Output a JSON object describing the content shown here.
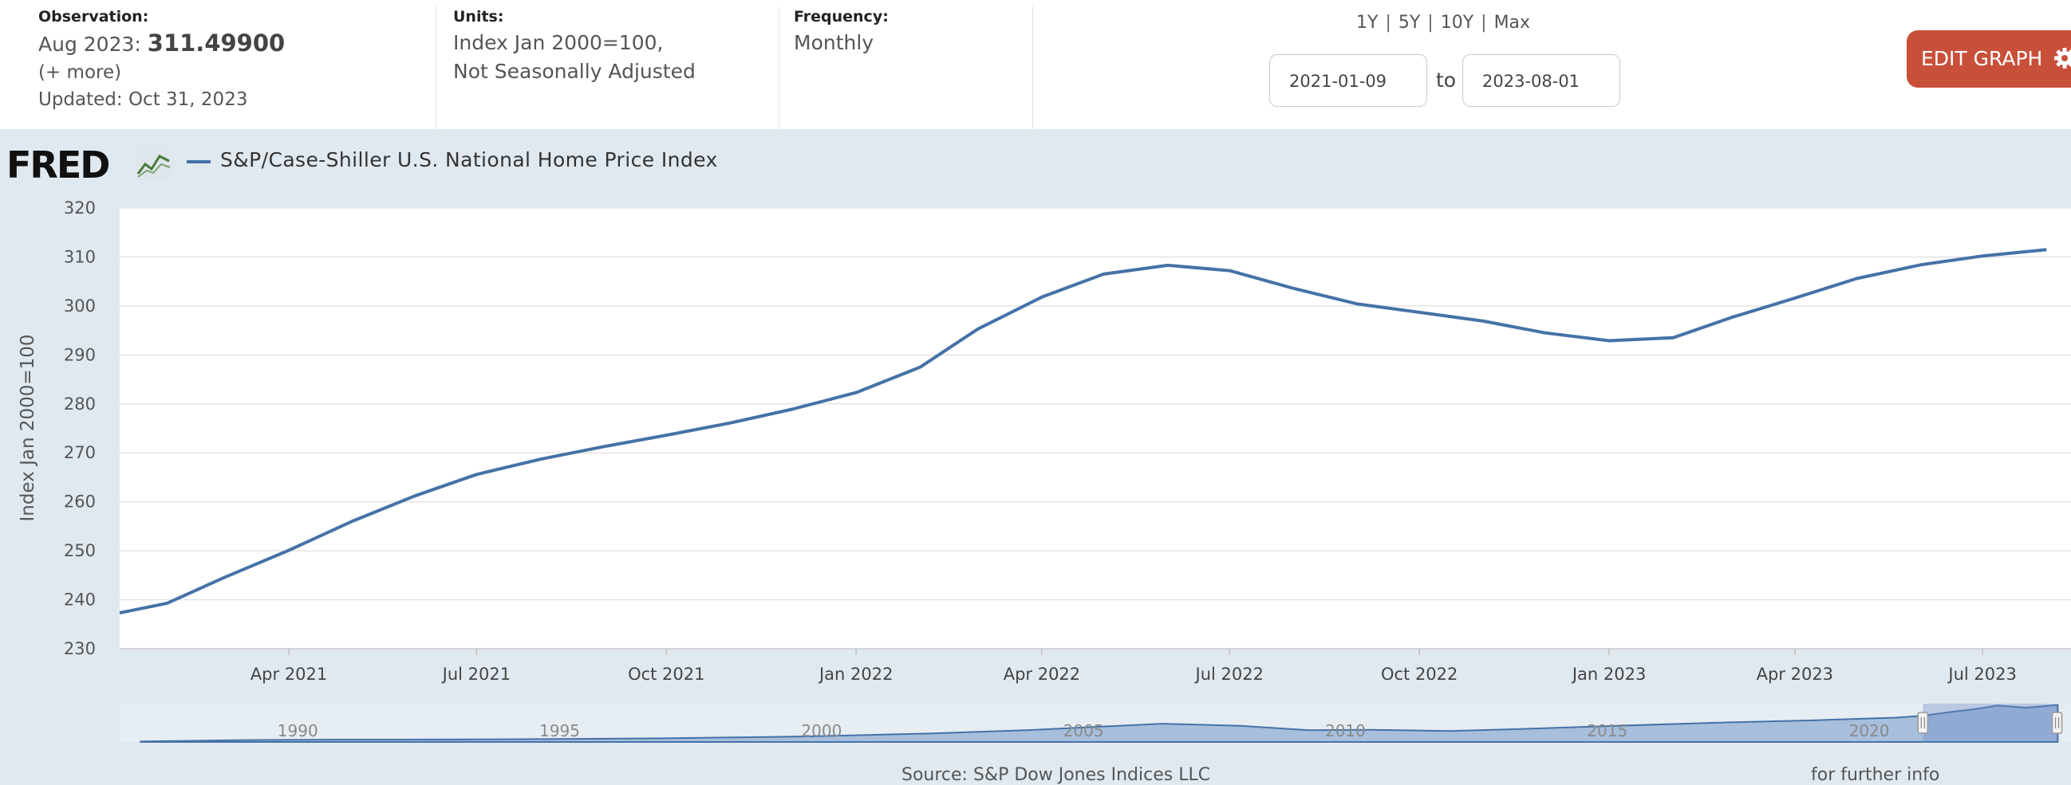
{
  "header": {
    "observation": {
      "label": "Observation:",
      "date": "Aug 2023:",
      "value": "311.49900",
      "more": "(+ more)",
      "updated": "Updated: Oct 31, 2023"
    },
    "units": {
      "label": "Units:",
      "line1": "Index Jan 2000=100,",
      "line2": "Not Seasonally Adjusted"
    },
    "frequency": {
      "label": "Frequency:",
      "value": "Monthly"
    },
    "range_links": [
      "1Y",
      "5Y",
      "10Y",
      "Max"
    ],
    "date_from": "2021-01-09",
    "to_label": "to",
    "date_to": "2023-08-01",
    "edit_button": "EDIT GRAPH",
    "edit_icon": "gear-icon"
  },
  "legend": {
    "logo": "FRED",
    "series_label": "S&P/Case-Shiller U.S. National Home Price Index",
    "color": "#4572a7"
  },
  "chart_data": {
    "type": "line",
    "ylabel": "Index Jan 2000=100",
    "ylim": [
      230,
      320
    ],
    "yticks": [
      230,
      240,
      250,
      260,
      270,
      280,
      290,
      300,
      310,
      320
    ],
    "x_range": [
      "2021-01-09",
      "2023-08-09"
    ],
    "xticks": [
      {
        "date": "2021-04-01",
        "label": "Apr 2021"
      },
      {
        "date": "2021-07-01",
        "label": "Jul 2021"
      },
      {
        "date": "2021-10-01",
        "label": "Oct 2021"
      },
      {
        "date": "2022-01-01",
        "label": "Jan 2022"
      },
      {
        "date": "2022-04-01",
        "label": "Apr 2022"
      },
      {
        "date": "2022-07-01",
        "label": "Jul 2022"
      },
      {
        "date": "2022-10-01",
        "label": "Oct 2022"
      },
      {
        "date": "2023-01-01",
        "label": "Jan 2023"
      },
      {
        "date": "2023-04-01",
        "label": "Apr 2023"
      },
      {
        "date": "2023-07-01",
        "label": "Jul 2023"
      }
    ],
    "grid": true,
    "series": [
      {
        "color": "#4572a7",
        "points": [
          {
            "x": "2021-01-09",
            "y": 237.3
          },
          {
            "x": "2021-02-01",
            "y": 239.3
          },
          {
            "x": "2021-03-01",
            "y": 244.6
          },
          {
            "x": "2021-04-01",
            "y": 250.1
          },
          {
            "x": "2021-05-01",
            "y": 255.9
          },
          {
            "x": "2021-06-01",
            "y": 261.2
          },
          {
            "x": "2021-07-01",
            "y": 265.6
          },
          {
            "x": "2021-08-01",
            "y": 268.7
          },
          {
            "x": "2021-09-01",
            "y": 271.3
          },
          {
            "x": "2021-10-01",
            "y": 273.6
          },
          {
            "x": "2021-11-01",
            "y": 276.1
          },
          {
            "x": "2021-12-01",
            "y": 278.9
          },
          {
            "x": "2022-01-01",
            "y": 282.3
          },
          {
            "x": "2022-02-01",
            "y": 287.5
          },
          {
            "x": "2022-03-01",
            "y": 295.3
          },
          {
            "x": "2022-04-01",
            "y": 301.8
          },
          {
            "x": "2022-05-01",
            "y": 306.5
          },
          {
            "x": "2022-06-01",
            "y": 308.3
          },
          {
            "x": "2022-07-01",
            "y": 307.2
          },
          {
            "x": "2022-08-01",
            "y": 303.6
          },
          {
            "x": "2022-09-01",
            "y": 300.4
          },
          {
            "x": "2022-10-01",
            "y": 298.7
          },
          {
            "x": "2022-11-01",
            "y": 296.9
          },
          {
            "x": "2022-12-01",
            "y": 294.5
          },
          {
            "x": "2023-01-01",
            "y": 292.9
          },
          {
            "x": "2023-02-01",
            "y": 293.5
          },
          {
            "x": "2023-03-01",
            "y": 297.6
          },
          {
            "x": "2023-04-01",
            "y": 301.6
          },
          {
            "x": "2023-05-01",
            "y": 305.6
          },
          {
            "x": "2023-06-01",
            "y": 308.4
          },
          {
            "x": "2023-07-01",
            "y": 310.2
          },
          {
            "x": "2023-08-01",
            "y": 311.5
          }
        ]
      }
    ]
  },
  "navigator": {
    "tick_labels": [
      "1990",
      "1995",
      "2000",
      "2005",
      "2010",
      "2015",
      "2020"
    ],
    "x_range": [
      1986.6,
      2023.7
    ],
    "y_range": [
      60,
      320
    ],
    "selection_range": [
      "2021-01-09",
      "2023-08-01"
    ],
    "overview": [
      {
        "x": 1987.0,
        "y": 63
      },
      {
        "x": 1989.0,
        "y": 73
      },
      {
        "x": 1991.0,
        "y": 76
      },
      {
        "x": 1993.0,
        "y": 77
      },
      {
        "x": 1995.0,
        "y": 80
      },
      {
        "x": 1997.0,
        "y": 85
      },
      {
        "x": 1999.0,
        "y": 94
      },
      {
        "x": 2000.0,
        "y": 100
      },
      {
        "x": 2002.0,
        "y": 117
      },
      {
        "x": 2004.0,
        "y": 141
      },
      {
        "x": 2006.5,
        "y": 184
      },
      {
        "x": 2008.0,
        "y": 170
      },
      {
        "x": 2009.3,
        "y": 140
      },
      {
        "x": 2010.5,
        "y": 143
      },
      {
        "x": 2012.0,
        "y": 135
      },
      {
        "x": 2013.5,
        "y": 150
      },
      {
        "x": 2015.0,
        "y": 168
      },
      {
        "x": 2017.0,
        "y": 190
      },
      {
        "x": 2019.0,
        "y": 208
      },
      {
        "x": 2020.5,
        "y": 225
      },
      {
        "x": 2021.0,
        "y": 237
      },
      {
        "x": 2021.5,
        "y": 261
      },
      {
        "x": 2022.0,
        "y": 282
      },
      {
        "x": 2022.45,
        "y": 308
      },
      {
        "x": 2023.0,
        "y": 293
      },
      {
        "x": 2023.6,
        "y": 311.5
      }
    ]
  },
  "footer": {
    "source_text": "Source: S&P Dow Jones Indices LLC",
    "right_text": "for further info"
  }
}
